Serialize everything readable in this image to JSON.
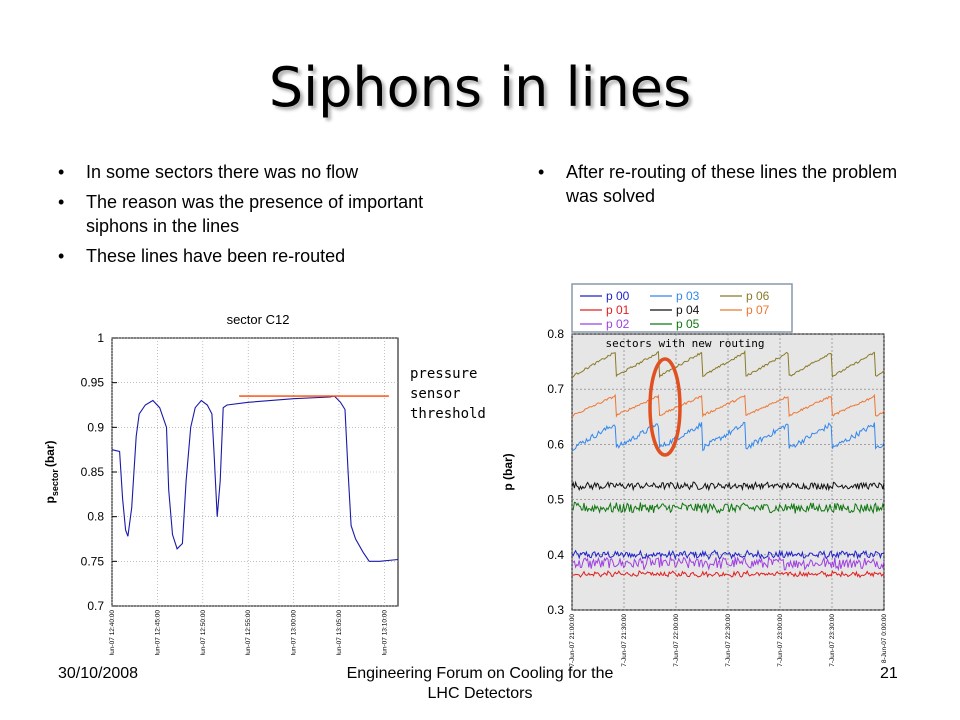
{
  "slide": {
    "title": "Siphons in lines",
    "left_bullets": [
      "In some sectors there was no flow",
      "The reason was the presence of important siphons in the lines",
      "These lines have been re-routed"
    ],
    "right_bullets": [
      "After re-routing of these lines the problem was solved"
    ],
    "annotation": "pressure\nsensor\nthreshold",
    "footer_date": "30/10/2008",
    "footer_center": "Engineering Forum on Cooling for the LHC Detectors",
    "page_number": "21",
    "colors": {
      "threshold_line": "#ff4400",
      "highlight_ellipse": "#e05020",
      "plot_bg": "#e6e6e6"
    }
  },
  "chart_data": [
    {
      "type": "line",
      "title": "sector  C12",
      "ylabel_main": "p",
      "ylabel_sub": "sector",
      "ylabel_unit": "(bar)",
      "xlabel": "",
      "ylim": [
        0.7,
        1.0
      ],
      "yticks": [
        0.7,
        0.75,
        0.8,
        0.85,
        0.9,
        0.95,
        1
      ],
      "ytick_labels": [
        "0.7",
        "0.75",
        "0.8",
        "0.85",
        "0.9",
        "0.95",
        "1"
      ],
      "xlim": [
        "5-Jun-07 12:40:00",
        "5-Jun-07 13:11:30"
      ],
      "xtick_labels": [
        "5-Jun-07 12:40:00",
        "5-Jun-07 12:45:00",
        "5-Jun-07 12:50:00",
        "5-Jun-07 12:55:00",
        "5-Jun-07 13:00:00",
        "5-Jun-07 13:05:00",
        "5-Jun-07 13:10:00"
      ],
      "grid": true,
      "series": [
        {
          "color": "#1a1aa8",
          "points": [
            [
              "5-Jun-07 12:40:00",
              0.875
            ],
            [
              "5-Jun-07 12:40:50",
              0.873
            ],
            [
              "5-Jun-07 12:41:10",
              0.82
            ],
            [
              "5-Jun-07 12:41:30",
              0.785
            ],
            [
              "5-Jun-07 12:41:45",
              0.778
            ],
            [
              "5-Jun-07 12:42:10",
              0.81
            ],
            [
              "5-Jun-07 12:42:40",
              0.89
            ],
            [
              "5-Jun-07 12:43:00",
              0.915
            ],
            [
              "5-Jun-07 12:43:40",
              0.925
            ],
            [
              "5-Jun-07 12:44:30",
              0.93
            ],
            [
              "5-Jun-07 12:45:15",
              0.922
            ],
            [
              "5-Jun-07 12:46:00",
              0.9
            ],
            [
              "5-Jun-07 12:46:15",
              0.83
            ],
            [
              "5-Jun-07 12:46:40",
              0.78
            ],
            [
              "5-Jun-07 12:47:10",
              0.764
            ],
            [
              "5-Jun-07 12:47:45",
              0.77
            ],
            [
              "5-Jun-07 12:48:10",
              0.84
            ],
            [
              "5-Jun-07 12:48:40",
              0.9
            ],
            [
              "5-Jun-07 12:49:10",
              0.922
            ],
            [
              "5-Jun-07 12:49:50",
              0.93
            ],
            [
              "5-Jun-07 12:50:30",
              0.925
            ],
            [
              "5-Jun-07 12:51:00",
              0.915
            ],
            [
              "5-Jun-07 12:51:15",
              0.87
            ],
            [
              "5-Jun-07 12:51:35",
              0.8
            ],
            [
              "5-Jun-07 12:51:55",
              0.84
            ],
            [
              "5-Jun-07 12:52:15",
              0.922
            ],
            [
              "5-Jun-07 12:52:40",
              0.925
            ],
            [
              "5-Jun-07 12:55:00",
              0.928
            ],
            [
              "5-Jun-07 13:00:00",
              0.932
            ],
            [
              "5-Jun-07 13:04:00",
              0.934
            ],
            [
              "5-Jun-07 13:04:30",
              0.935
            ],
            [
              "5-Jun-07 13:05:10",
              0.928
            ],
            [
              "5-Jun-07 13:05:40",
              0.92
            ],
            [
              "5-Jun-07 13:06:00",
              0.85
            ],
            [
              "5-Jun-07 13:06:20",
              0.79
            ],
            [
              "5-Jun-07 13:06:50",
              0.775
            ],
            [
              "5-Jun-07 13:07:40",
              0.76
            ],
            [
              "5-Jun-07 13:08:20",
              0.75
            ],
            [
              "5-Jun-07 13:09:30",
              0.75
            ],
            [
              "5-Jun-07 13:11:30",
              0.752
            ]
          ]
        }
      ],
      "threshold": {
        "value": 0.935,
        "x_start": "5-Jun-07 12:54:00",
        "x_end": "5-Jun-07 13:10:30"
      }
    },
    {
      "type": "line",
      "title": "",
      "ylabel": "p (bar)",
      "xlabel": "",
      "ylim": [
        0.3,
        0.8
      ],
      "yticks": [
        0.3,
        0.4,
        0.5,
        0.6,
        0.7,
        0.8
      ],
      "ytick_labels": [
        "0.3",
        "0.4",
        "0.5",
        "0.6",
        "0.7",
        "0.8"
      ],
      "xlim": [
        "7-Jun-07 21:00:00",
        "8-Jun-07 0:00:00"
      ],
      "xtick_labels": [
        "7-Jun-07 21:00:00",
        "7-Jun-07 21:30:00",
        "7-Jun-07 22:00:00",
        "7-Jun-07 22:30:00",
        "7-Jun-07 23:00:00",
        "7-Jun-07 23:30:00",
        "8-Jun-07 0:00:00"
      ],
      "grid": true,
      "legend_position": "top",
      "annotation": "sectors with new routing",
      "series": [
        {
          "name": "p 00",
          "color": "#2222cc",
          "level": 0.4,
          "amplitude": 0.006,
          "noise": 0.006,
          "style": "noise"
        },
        {
          "name": "p 01",
          "color": "#e02020",
          "level": 0.365,
          "amplitude": 0.006,
          "noise": 0.004,
          "style": "noise"
        },
        {
          "name": "p 02",
          "color": "#a040e0",
          "level": 0.385,
          "amplitude": 0.008,
          "noise": 0.01,
          "style": "noise"
        },
        {
          "name": "p 03",
          "color": "#3388ee",
          "level": 0.615,
          "amplitude": 0.022,
          "noise": 0.005,
          "style": "saw"
        },
        {
          "name": "p 04",
          "color": "#111111",
          "level": 0.525,
          "amplitude": 0.004,
          "noise": 0.006,
          "style": "noise"
        },
        {
          "name": "p 05",
          "color": "#117711",
          "level": 0.485,
          "amplitude": 0.004,
          "noise": 0.009,
          "style": "noise"
        },
        {
          "name": "p 06",
          "color": "#8a7a28",
          "level": 0.745,
          "amplitude": 0.022,
          "noise": 0.002,
          "style": "saw"
        },
        {
          "name": "p 07",
          "color": "#ee7733",
          "level": 0.67,
          "amplitude": 0.018,
          "noise": 0.002,
          "style": "saw"
        }
      ]
    }
  ]
}
